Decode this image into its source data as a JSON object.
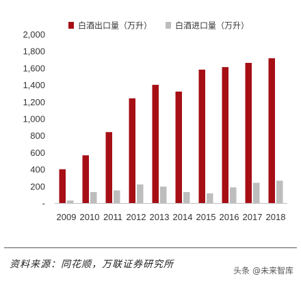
{
  "chart_data": {
    "type": "bar",
    "categories": [
      "2009",
      "2010",
      "2011",
      "2012",
      "2013",
      "2014",
      "2015",
      "2016",
      "2017",
      "2018"
    ],
    "series": [
      {
        "name": "白酒出口量（万升）",
        "color": "#a50f15",
        "values": [
          400,
          565,
          840,
          1240,
          1400,
          1320,
          1580,
          1610,
          1660,
          1715
        ]
      },
      {
        "name": "白酒进口量（万升）",
        "color": "#bdbdbd",
        "values": [
          30,
          130,
          150,
          220,
          195,
          130,
          115,
          185,
          240,
          265
        ]
      }
    ],
    "ylim": [
      0,
      2000
    ],
    "yticks": [
      {
        "value": 0,
        "label": "-"
      },
      {
        "value": 200,
        "label": "200"
      },
      {
        "value": 400,
        "label": "400"
      },
      {
        "value": 600,
        "label": "600"
      },
      {
        "value": 800,
        "label": "800"
      },
      {
        "value": 1000,
        "label": "1,000"
      },
      {
        "value": 1200,
        "label": "1,200"
      },
      {
        "value": 1400,
        "label": "1,400"
      },
      {
        "value": 1600,
        "label": "1,600"
      },
      {
        "value": 1800,
        "label": "1,800"
      },
      {
        "value": 2000,
        "label": "2,000"
      }
    ],
    "grid": false,
    "legend": "top"
  },
  "footer": {
    "source": "资料来源：同花顺，万联证券研究所",
    "watermark": "头条 @未来智库"
  }
}
